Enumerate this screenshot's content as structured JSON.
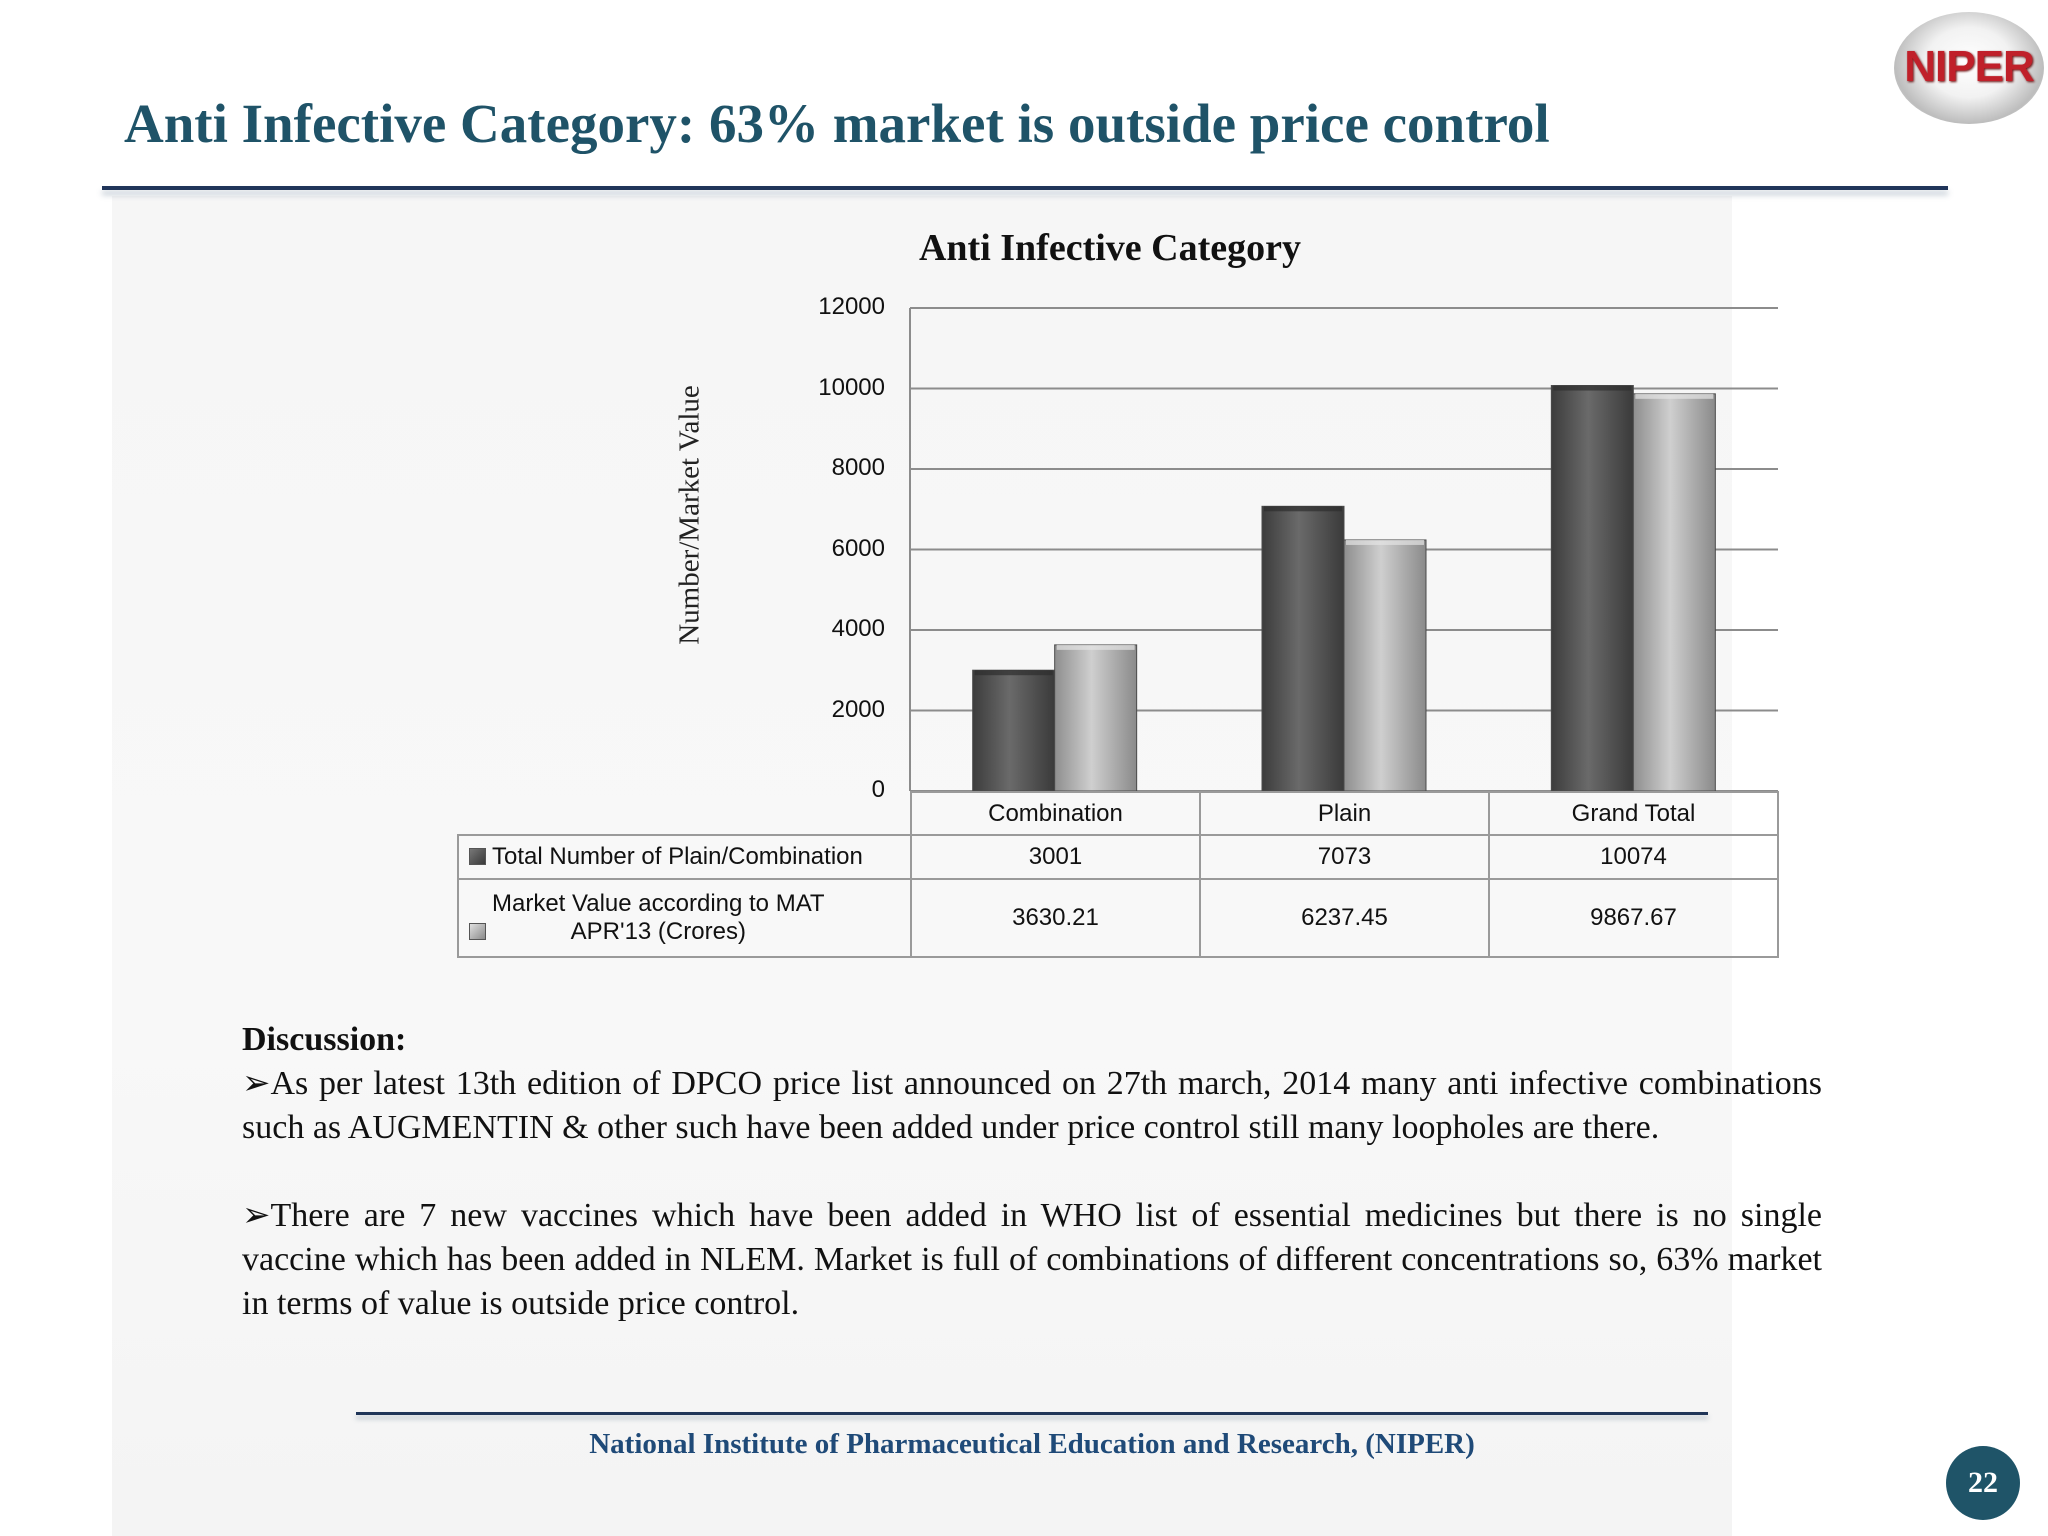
{
  "slide": {
    "title": "Anti Infective Category: 63% market  is outside price control",
    "logo_text": "NIPER",
    "page_number": "22",
    "footer": "National Institute of Pharmaceutical Education and Research, (NIPER)"
  },
  "chart_data": {
    "type": "bar",
    "title": "Anti Infective Category",
    "ylabel": "Number/Market Value",
    "xlabel": "",
    "ylim": [
      0,
      12000
    ],
    "yticks": [
      "0",
      "2000",
      "4000",
      "6000",
      "8000",
      "10000",
      "12000"
    ],
    "categories": [
      "Combination",
      "Plain",
      "Grand Total"
    ],
    "series": [
      {
        "name": "Total Number of Plain/Combination",
        "values": [
          3001,
          7073,
          10074
        ],
        "labels": [
          "3001",
          "7073",
          "10074"
        ],
        "color": "#555555"
      },
      {
        "name_line1": "Market Value according to MAT",
        "name_line2": "APR'13  (Crores)",
        "name": "Market Value according to MAT APR'13  (Crores)",
        "values": [
          3630.21,
          6237.45,
          9867.67
        ],
        "labels": [
          "3630.21",
          "6237.45",
          "9867.67"
        ],
        "color": "#b5b5b5"
      }
    ],
    "grid": true,
    "legend": "data table below chart"
  },
  "discussion": {
    "heading": "Discussion:",
    "points": [
      "➢As per latest 13th edition of DPCO price list announced on 27th march, 2014 many anti infective combinations such as AUGMENTIN & other such have been added under price control still many loopholes are there.",
      "➢There are 7 new vaccines which have been added in WHO list of essential medicines but there is no single vaccine which has been added in NLEM. Market is full of combinations of different concentrations so, 63% market in terms of value is outside price control."
    ]
  }
}
